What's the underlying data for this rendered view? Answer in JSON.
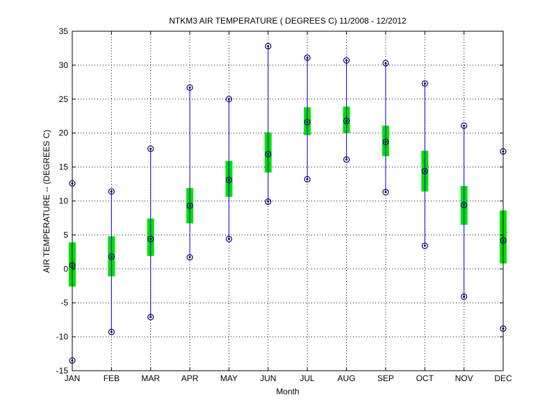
{
  "chart_data": {
    "type": "box",
    "title": "NTKM3  AIR TEMPERATURE ( DEGREES C) 11/2008 - 12/2012",
    "xlabel": "Month",
    "ylabel": "AIR TEMPERATURE -- (DEGREES C)",
    "ylim": [
      -15,
      35
    ],
    "yticks": [
      -15,
      -10,
      -5,
      0,
      5,
      10,
      15,
      20,
      25,
      30,
      35
    ],
    "grid": true,
    "categories": [
      "JAN",
      "FEB",
      "MAR",
      "APR",
      "MAY",
      "JUN",
      "JUL",
      "AUG",
      "SEP",
      "OCT",
      "NOV",
      "DEC"
    ],
    "max": [
      12.6,
      11.4,
      17.7,
      26.7,
      25.0,
      32.8,
      31.1,
      30.7,
      30.3,
      27.3,
      21.1,
      17.3
    ],
    "min": [
      -13.5,
      -9.3,
      -7.1,
      1.7,
      4.4,
      9.9,
      13.2,
      16.1,
      11.3,
      3.4,
      -4.1,
      -8.8
    ],
    "mean": [
      0.5,
      1.8,
      4.4,
      9.3,
      13.1,
      16.9,
      21.6,
      21.8,
      18.7,
      14.4,
      9.4,
      4.2
    ],
    "box_upper": [
      3.9,
      4.8,
      7.4,
      11.9,
      15.9,
      20.1,
      23.8,
      23.9,
      21.1,
      17.4,
      12.2,
      8.6
    ],
    "box_lower": [
      -2.6,
      -1.1,
      1.9,
      6.7,
      10.6,
      14.2,
      19.7,
      20.0,
      16.6,
      11.4,
      6.5,
      0.8
    ],
    "colors": {
      "whisker": "#0000ff",
      "box": "#00e000",
      "marker": "#000080"
    }
  }
}
